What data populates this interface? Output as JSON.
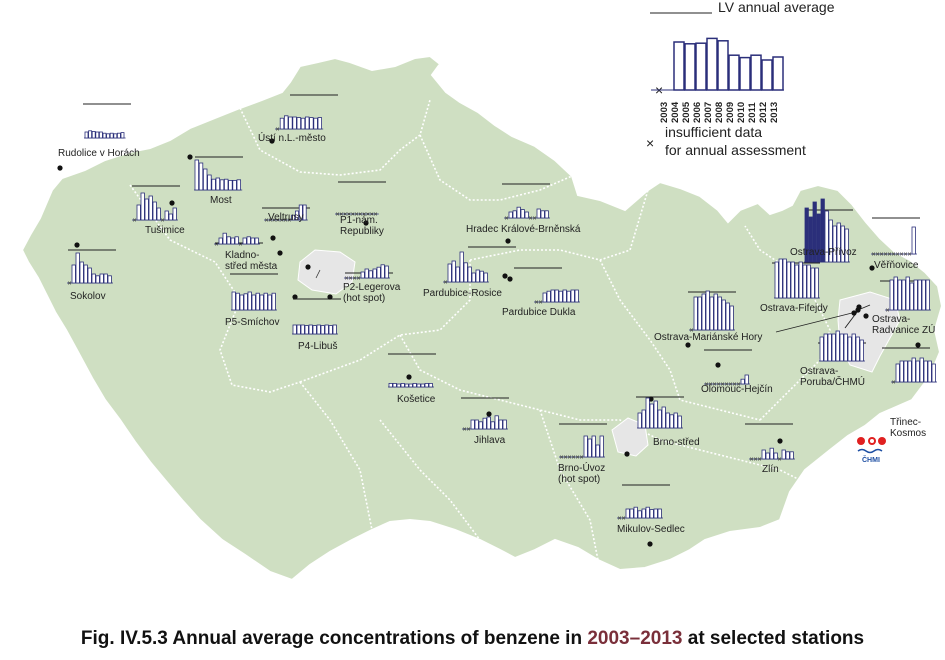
{
  "caption": {
    "prefix": "Fig. IV.5.3  Annual average concentrations of benzene in ",
    "years": "2003–2013",
    "suffix": " at selected stations"
  },
  "colors": {
    "land": "#cfdfc2",
    "border": "#ffffff",
    "urban": "#e6e6e6",
    "bar_stroke": "#2b2f7a",
    "bar_fill": "#ffffff",
    "hot_fill": "#2b2f7a"
  },
  "legend": {
    "limit_label": "LV annual average",
    "insufficient_line1": "insufficient data",
    "insufficient_line2": "for annual assessment",
    "years": [
      "2003",
      "2004",
      "2005",
      "2006",
      "2007",
      "2008",
      "2009",
      "2010",
      "2011",
      "2012",
      "2013"
    ],
    "example_values": [
      null,
      0.8,
      0.77,
      0.78,
      0.86,
      0.82,
      0.58,
      0.54,
      0.58,
      0.5,
      0.55
    ]
  },
  "stations": [
    {
      "name": "Rudolice v Horách",
      "values": [
        0.1,
        0.12,
        0.11,
        0.1,
        0.1,
        0.08,
        0.07,
        0.08,
        0.07,
        0.08,
        0.09
      ]
    },
    {
      "name": "Ústí n.L.-město",
      "values": [
        null,
        0.18,
        0.22,
        0.2,
        0.2,
        0.19,
        0.18,
        0.2,
        0.19,
        0.18,
        0.19
      ]
    },
    {
      "name": "Most",
      "values": [
        0.5,
        0.45,
        0.35,
        0.25,
        0.18,
        0.2,
        0.17,
        0.18,
        0.16,
        0.16,
        0.17
      ]
    },
    {
      "name": "Tušimice",
      "values": [
        null,
        0.25,
        0.45,
        0.35,
        0.4,
        0.3,
        0.2,
        null,
        0.15,
        0.1,
        0.2
      ]
    },
    {
      "name": "Veltrusy",
      "values": [
        null,
        null,
        null,
        null,
        null,
        null,
        null,
        0.08,
        0.15,
        0.25,
        0.25
      ]
    },
    {
      "name": "P1-nám. Republiky",
      "values": [
        null,
        null,
        null,
        null,
        null,
        null,
        null,
        null,
        null,
        null,
        null
      ]
    },
    {
      "name": "Kladno-střed města",
      "values": [
        null,
        0.1,
        0.18,
        0.12,
        0.1,
        0.12,
        null,
        0.1,
        0.12,
        0.1,
        0.1
      ]
    },
    {
      "name": "Sokolov",
      "values": [
        null,
        0.3,
        0.5,
        0.35,
        0.3,
        0.25,
        0.15,
        0.12,
        0.15,
        0.15,
        0.12
      ]
    },
    {
      "name": "P2-Legerova (hot spot)",
      "values": [
        null,
        null,
        null,
        null,
        0.1,
        0.15,
        0.12,
        0.15,
        0.18,
        0.22,
        0.2
      ]
    },
    {
      "name": "P5-Smíchov",
      "values": [
        0.3,
        0.28,
        0.25,
        0.27,
        0.3,
        0.25,
        0.28,
        0.25,
        0.28,
        0.25,
        0.28
      ]
    },
    {
      "name": "P4-Libuš",
      "values": [
        0.15,
        0.15,
        0.15,
        0.14,
        0.15,
        0.14,
        0.15,
        0.14,
        0.15,
        0.14,
        0.15
      ]
    },
    {
      "name": "Hradec Králové-Brněnská",
      "values": [
        null,
        0.1,
        0.12,
        0.18,
        0.14,
        0.1,
        null,
        null,
        0.15,
        0.12,
        0.12
      ]
    },
    {
      "name": "Pardubice-Rosice",
      "values": [
        null,
        0.3,
        0.35,
        0.25,
        0.5,
        0.32,
        0.25,
        0.15,
        0.2,
        0.18,
        0.15
      ]
    },
    {
      "name": "Pardubice Dukla",
      "values": [
        null,
        null,
        0.15,
        0.18,
        0.2,
        0.2,
        0.18,
        0.2,
        0.18,
        0.2,
        0.2
      ]
    },
    {
      "name": "Košetice",
      "values": [
        0.06,
        0.06,
        0.05,
        0.06,
        0.05,
        0.05,
        0.06,
        0.05,
        0.05,
        0.06,
        0.06
      ]
    },
    {
      "name": "Jihlava",
      "values": [
        null,
        null,
        0.15,
        0.15,
        0.12,
        0.18,
        0.2,
        0.12,
        0.22,
        0.15,
        0.15
      ]
    },
    {
      "name": "Brno-střed",
      "values": [
        0.25,
        0.3,
        0.5,
        0.4,
        0.45,
        0.3,
        0.35,
        0.25,
        0.22,
        0.25,
        0.2
      ]
    },
    {
      "name": "Brno-Úvoz (hot spot)",
      "values": [
        null,
        null,
        null,
        null,
        null,
        null,
        0.35,
        0.3,
        0.35,
        0.2,
        0.35
      ]
    },
    {
      "name": "Mikulov-Sedlec",
      "values": [
        null,
        null,
        0.15,
        0.15,
        0.18,
        0.12,
        0.15,
        0.18,
        0.14,
        0.15,
        0.15
      ]
    },
    {
      "name": "Ostrava-Mariánské Hory",
      "values": [
        null,
        0.55,
        0.55,
        0.6,
        0.65,
        0.55,
        0.6,
        0.55,
        0.5,
        0.45,
        0.4
      ]
    },
    {
      "name": "Olomouc-Hejčín",
      "values": [
        null,
        null,
        null,
        null,
        null,
        null,
        null,
        null,
        null,
        0.08,
        0.15
      ]
    },
    {
      "name": "Zlín",
      "values": [
        null,
        null,
        null,
        0.15,
        0.1,
        0.18,
        0.1,
        null,
        0.15,
        0.12,
        0.12
      ]
    },
    {
      "name": "Ostrava-Přívoz",
      "values": [
        0.9,
        0.75,
        1.0,
        0.8,
        1.05,
        0.85,
        0.7,
        0.6,
        0.65,
        0.6,
        0.55
      ]
    },
    {
      "name": "Věřňovice",
      "values": [
        null,
        null,
        null,
        null,
        null,
        null,
        null,
        null,
        null,
        null,
        0.45
      ]
    },
    {
      "name": "Ostrava-Fifejdy",
      "values": [
        0.6,
        0.65,
        0.65,
        0.6,
        0.6,
        0.55,
        0.6,
        0.55,
        0.55,
        0.5,
        0.5
      ]
    },
    {
      "name": "Ostrava-Radvanice ZÚ",
      "values": [
        null,
        0.5,
        0.55,
        0.5,
        0.5,
        0.55,
        0.45,
        0.5,
        0.5,
        0.5,
        0.5
      ]
    },
    {
      "name": "Ostrava-Poruba/ČHMÚ",
      "values": [
        0.4,
        0.45,
        0.45,
        0.45,
        0.5,
        0.45,
        0.45,
        0.4,
        0.45,
        0.4,
        0.35
      ]
    },
    {
      "name": "Třinec-Kosmos",
      "values": [
        null,
        0.3,
        0.35,
        0.35,
        0.35,
        0.4,
        0.35,
        0.4,
        0.35,
        0.35,
        0.3
      ]
    }
  ],
  "logo": {
    "text": "ČHMI"
  }
}
